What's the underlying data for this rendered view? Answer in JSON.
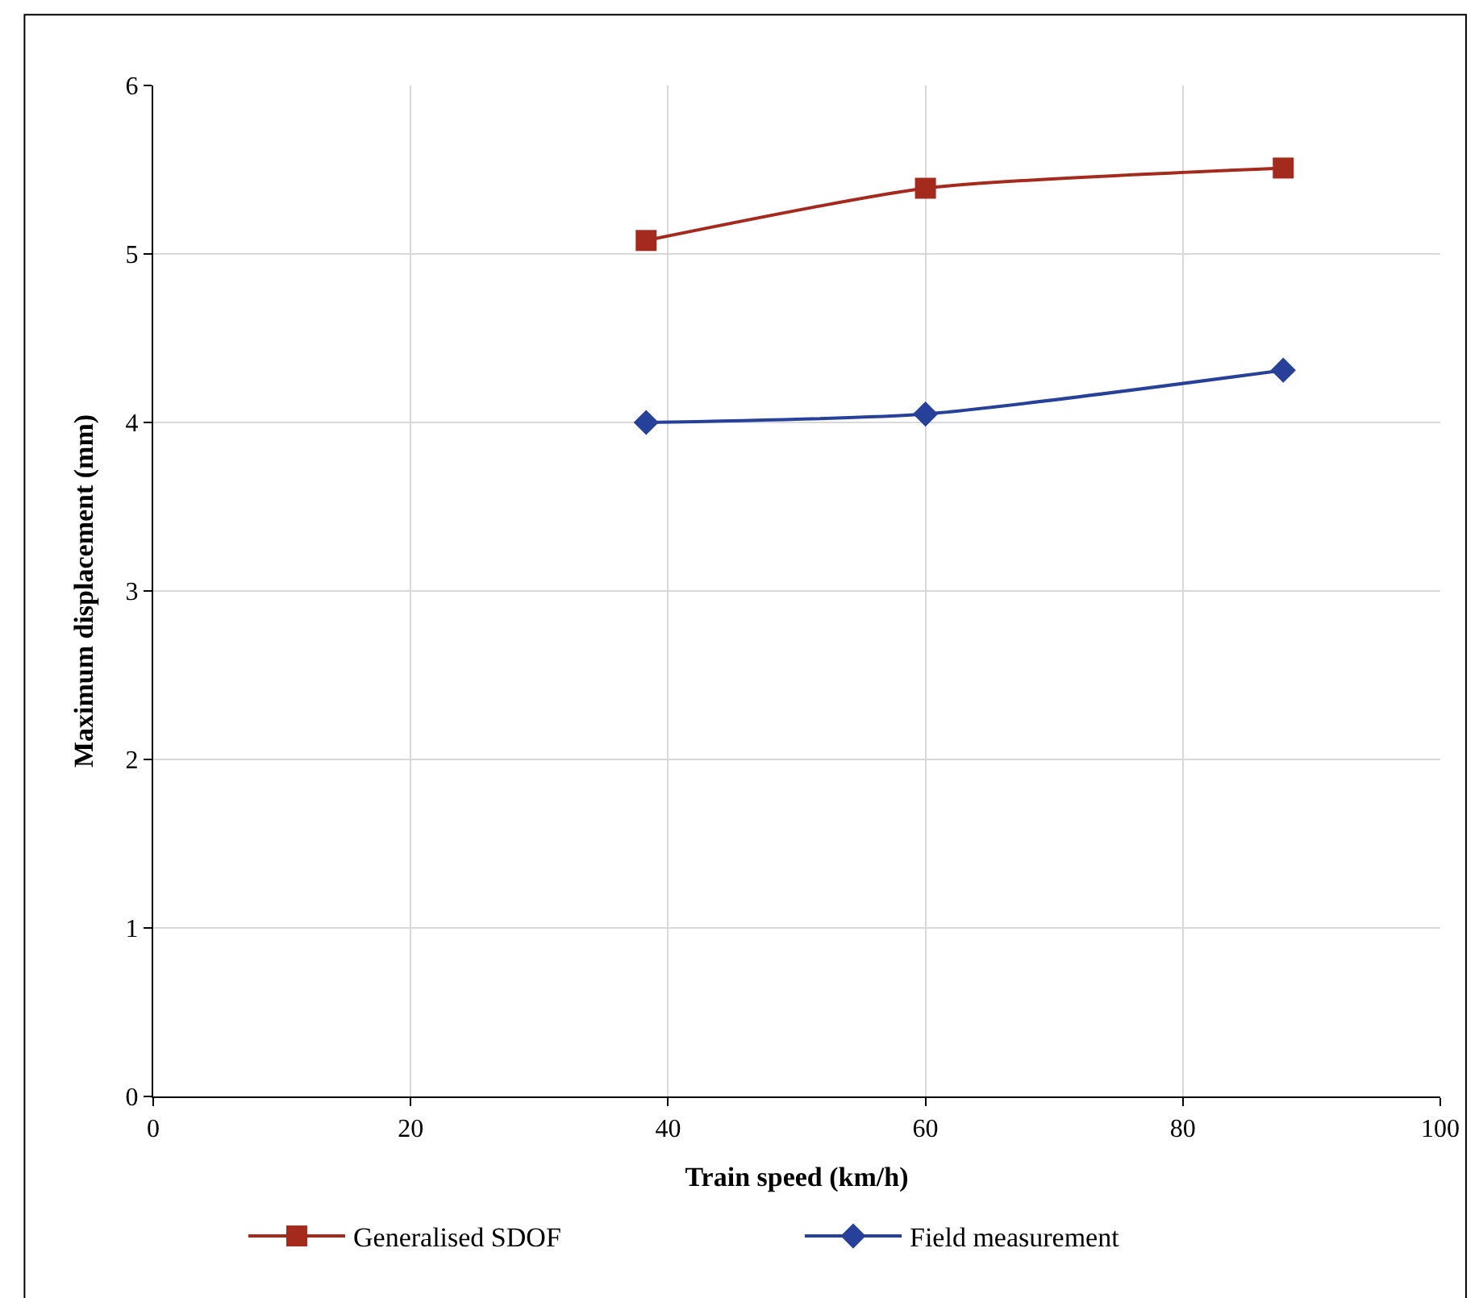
{
  "chart_data": {
    "type": "line",
    "xlabel": "Train speed (km/h)",
    "ylabel": "Maximum displacement (mm)",
    "xlim": [
      0,
      100
    ],
    "xticks": [
      0,
      20,
      40,
      60,
      80,
      100
    ],
    "ylim": [
      0,
      6
    ],
    "yticks": [
      0,
      1,
      2,
      3,
      4,
      5,
      6
    ],
    "grid": true,
    "legend": "bottom",
    "line_style": "solid",
    "series": [
      {
        "name": "Generalised SDOF",
        "color": "#a52a1e",
        "marker": "square",
        "x": [
          38.3,
          60,
          87.8
        ],
        "values": [
          5.08,
          5.39,
          5.51
        ]
      },
      {
        "name": "Field measurement",
        "color": "#27409a",
        "marker": "diamond",
        "x": [
          38.3,
          60,
          87.8
        ],
        "values": [
          4.0,
          4.05,
          4.31
        ]
      }
    ]
  }
}
